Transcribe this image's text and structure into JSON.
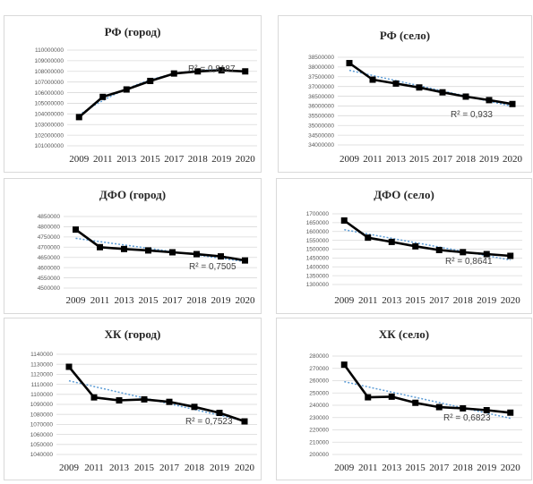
{
  "chart_data": [
    {
      "type": "line",
      "title": "РФ (город)",
      "categories": [
        "2009",
        "2011",
        "2013",
        "2015",
        "2017",
        "2018",
        "2019",
        "2020"
      ],
      "series": [
        {
          "values": [
            103700000,
            105600000,
            106300000,
            107100000,
            107800000,
            108000000,
            108100000,
            108000000
          ]
        }
      ],
      "trendline": {
        "kind": "polynomial",
        "r2_label": "R² = 0,8187"
      },
      "ylim": [
        101000000,
        110000000
      ],
      "yticks": [
        "101000000",
        "102000000",
        "103000000",
        "104000000",
        "105000000",
        "106000000",
        "107000000",
        "108000000",
        "109000000",
        "110000000"
      ],
      "xlabel": "",
      "ylabel": "",
      "grid": true,
      "legend": "none"
    },
    {
      "type": "line",
      "title": "РФ (село)",
      "categories": [
        "2009",
        "2011",
        "2013",
        "2015",
        "2017",
        "2018",
        "2019",
        "2020"
      ],
      "series": [
        {
          "values": [
            38200000,
            37350000,
            37150000,
            36950000,
            36700000,
            36480000,
            36300000,
            36100000
          ]
        }
      ],
      "trendline": {
        "kind": "linear",
        "r2_label": "R² = 0,933"
      },
      "ylim": [
        34000000,
        38500000
      ],
      "yticks": [
        "34000000",
        "34500000",
        "35000000",
        "35500000",
        "36000000",
        "36500000",
        "37000000",
        "37500000",
        "38000000",
        "38500000"
      ],
      "xlabel": "",
      "ylabel": "",
      "grid": true,
      "legend": "none"
    },
    {
      "type": "line",
      "title": "ДФО (город)",
      "categories": [
        "2009",
        "2011",
        "2013",
        "2015",
        "2017",
        "2018",
        "2019",
        "2020"
      ],
      "series": [
        {
          "values": [
            4786000,
            4700000,
            4691000,
            4684000,
            4675000,
            4666000,
            4655000,
            4635000
          ]
        }
      ],
      "trendline": {
        "kind": "linear",
        "r2_label": "R² = 0,7505"
      },
      "ylim": [
        4500000,
        4850000
      ],
      "yticks": [
        "4500000",
        "4550000",
        "4600000",
        "4650000",
        "4700000",
        "4750000",
        "4800000",
        "4850000"
      ],
      "xlabel": "",
      "ylabel": "",
      "grid": true,
      "legend": "none"
    },
    {
      "type": "line",
      "title": "ДФО (село)",
      "categories": [
        "2009",
        "2011",
        "2013",
        "2015",
        "2017",
        "2018",
        "2019",
        "2020"
      ],
      "series": [
        {
          "values": [
            1662000,
            1565000,
            1541000,
            1516000,
            1495000,
            1483000,
            1472000,
            1462000
          ]
        }
      ],
      "trendline": {
        "kind": "linear",
        "r2_label": "R² = 0,8641"
      },
      "ylim": [
        1300000,
        1700000
      ],
      "yticks": [
        "1300000",
        "1350000",
        "1400000",
        "1450000",
        "1500000",
        "1550000",
        "1600000",
        "1650000",
        "1700000"
      ],
      "xlabel": "",
      "ylabel": "",
      "grid": true,
      "legend": "none"
    },
    {
      "type": "line",
      "title": "ХК (город)",
      "categories": [
        "2009",
        "2011",
        "2013",
        "2015",
        "2017",
        "2018",
        "2019",
        "2020"
      ],
      "series": [
        {
          "values": [
            1127500,
            1097000,
            1094000,
            1095000,
            1092500,
            1087500,
            1081500,
            1073000
          ]
        }
      ],
      "trendline": {
        "kind": "linear",
        "r2_label": "R² = 0,7523"
      },
      "ylim": [
        1040000,
        1140000
      ],
      "yticks": [
        "1040000",
        "1050000",
        "1060000",
        "1070000",
        "1080000",
        "1090000",
        "1100000",
        "1110000",
        "1120000",
        "1130000",
        "1140000"
      ],
      "xlabel": "",
      "ylabel": "",
      "grid": true,
      "legend": "none"
    },
    {
      "type": "line",
      "title": "ХК (село)",
      "categories": [
        "2009",
        "2011",
        "2013",
        "2015",
        "2017",
        "2018",
        "2019",
        "2020"
      ],
      "series": [
        {
          "values": [
            273000,
            246500,
            247000,
            242000,
            238500,
            237500,
            236000,
            234000
          ]
        }
      ],
      "trendline": {
        "kind": "linear",
        "r2_label": "R² = 0,6823"
      },
      "ylim": [
        200000,
        280000
      ],
      "yticks": [
        "200000",
        "210000",
        "220000",
        "230000",
        "240000",
        "250000",
        "260000",
        "270000",
        "280000"
      ],
      "xlabel": "",
      "ylabel": "",
      "grid": true,
      "legend": "none"
    }
  ]
}
